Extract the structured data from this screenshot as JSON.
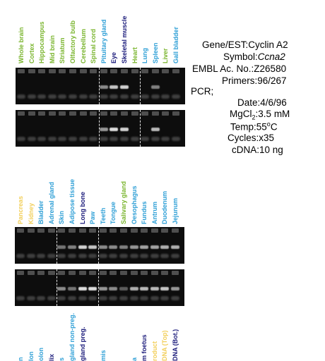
{
  "top_lanes": [
    {
      "label": "Whole brain",
      "color": "#7ab52e",
      "strength": 0
    },
    {
      "label": "Cortex",
      "color": "#7ab52e",
      "strength": 0
    },
    {
      "label": "Hippocampus",
      "color": "#7ab52e",
      "strength": 0
    },
    {
      "label": "Mid brain",
      "color": "#7ab52e",
      "strength": 0
    },
    {
      "label": "Striatum",
      "color": "#7ab52e",
      "strength": 0
    },
    {
      "label": "Olfactory bulb",
      "color": "#7ab52e",
      "strength": 0
    },
    {
      "label": "Cerebellum",
      "color": "#7ab52e",
      "strength": 0
    },
    {
      "label": "Spinal cord",
      "color": "#7ab52e",
      "strength": 0
    },
    {
      "label": "Pituitary gland",
      "color": "#2e9fd6",
      "strength": 0.55
    },
    {
      "label": "Eye",
      "color": "#1a1a7a",
      "strength": 0.8
    },
    {
      "label": "Skeletal muscle",
      "color": "#1a1a7a",
      "strength": 0.85
    },
    {
      "label": "Heart",
      "color": "#7ab52e",
      "strength": 0
    },
    {
      "label": "Lung",
      "color": "#2e9fd6",
      "strength": 0
    },
    {
      "label": "Spleen",
      "color": "#2e9fd6",
      "strength": 0.5
    },
    {
      "label": "Liver",
      "color": "#7ab52e",
      "strength": 0
    },
    {
      "label": "Gall bladder",
      "color": "#2e9fd6",
      "strength": 0
    }
  ],
  "top_gel2_strength": [
    0,
    0,
    0,
    0,
    0,
    0,
    0,
    0,
    0.6,
    0.9,
    0.85,
    0,
    0,
    0.75,
    0,
    0
  ],
  "bottom_lanes": [
    {
      "label": "Pancreas",
      "color": "#f2cf5a",
      "strength": 0
    },
    {
      "label": "Kidney",
      "color": "#f2cf5a",
      "strength": 0
    },
    {
      "label": "Bladder",
      "color": "#2e9fd6",
      "strength": 0
    },
    {
      "label": "Adrenal gland",
      "color": "#2e9fd6",
      "strength": 0
    },
    {
      "label": "Skin",
      "color": "#2e9fd6",
      "strength": 0.45
    },
    {
      "label": "Adipose tissue",
      "color": "#2e9fd6",
      "strength": 0.5
    },
    {
      "label": "Long bone",
      "color": "#1a1a7a",
      "strength": 0.85
    },
    {
      "label": "Paw",
      "color": "#2e9fd6",
      "strength": 0.8
    },
    {
      "label": "Teeth",
      "color": "#2e9fd6",
      "strength": 0.55
    },
    {
      "label": "Tongue",
      "color": "#2e9fd6",
      "strength": 0.55
    },
    {
      "label": "Salivary gland",
      "color": "#7ab52e",
      "strength": 0.5
    },
    {
      "label": "Oesophagus",
      "color": "#2e9fd6",
      "strength": 0.6
    },
    {
      "label": "Fundus",
      "color": "#2e9fd6",
      "strength": 0.65
    },
    {
      "label": "Antrum",
      "color": "#2e9fd6",
      "strength": 0.65
    },
    {
      "label": "Duodenum",
      "color": "#2e9fd6",
      "strength": 0.7
    },
    {
      "label": "Jejunum",
      "color": "#2e9fd6",
      "strength": 0.7
    }
  ],
  "bottom_gel2_strength": [
    0,
    0,
    0,
    0,
    0.55,
    0.45,
    0.9,
    0.9,
    0.6,
    0.55,
    0.35,
    0.7,
    0.75,
    0.75,
    0.8,
    0.6
  ],
  "partial_labels": [
    {
      "label": "n",
      "color": "#2e9fd6"
    },
    {
      "label": "lon",
      "color": "#2e9fd6"
    },
    {
      "label": "olon",
      "color": "#2e9fd6"
    },
    {
      "label": "lix",
      "color": "#1a1a7a"
    },
    {
      "label": "s",
      "color": "#2e9fd6"
    },
    {
      "label": "gland non-preg.",
      "color": "#2e9fd6"
    },
    {
      "label": "gland preg.",
      "color": "#1a1a7a"
    },
    {
      "label": "",
      "color": "#2e9fd6"
    },
    {
      "label": "mis",
      "color": "#2e9fd6"
    },
    {
      "label": "",
      "color": "#2e9fd6"
    },
    {
      "label": "",
      "color": "#2e9fd6"
    },
    {
      "label": "a",
      "color": "#2e9fd6"
    },
    {
      "label": "m foetus",
      "color": "#1a1a7a"
    },
    {
      "label": "roduct",
      "color": "#f2cf5a"
    },
    {
      "label": "DNA (Top)",
      "color": "#f2cf5a"
    },
    {
      "label": "DNA (Bot.)",
      "color": "#1a1a7a"
    }
  ],
  "info": {
    "gene_key": "Gene/EST:",
    "gene_val": "Cyclin A2",
    "symbol_key": "Symbol:",
    "symbol_val": "Ccna2",
    "embl_key": "EMBL Ac. No.:",
    "embl_val": "Z26580",
    "primers_key": "Primers:",
    "primers_val": "96/267",
    "pcr_key": "PCR;",
    "date_key": "Date:",
    "date_val": "4/6/96",
    "mgcl_key_main": "MgCl",
    "mgcl_key_sub": "2",
    "mgcl_key_colon": ":",
    "mgcl_val": "3.5 mM",
    "temp_key": "Temp:",
    "temp_val_num": "55",
    "temp_val_sup": "o",
    "temp_val_unit": "C",
    "cycles_key": "Cycles:",
    "cycles_val": "x35",
    "cdna_key": "cDNA:",
    "cdna_val": "10 ng"
  }
}
